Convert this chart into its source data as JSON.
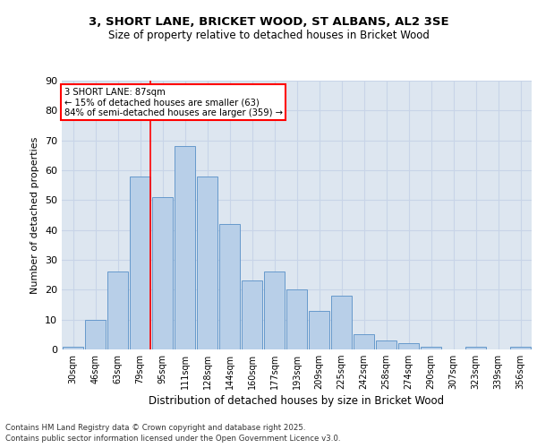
{
  "title1": "3, SHORT LANE, BRICKET WOOD, ST ALBANS, AL2 3SE",
  "title2": "Size of property relative to detached houses in Bricket Wood",
  "xlabel": "Distribution of detached houses by size in Bricket Wood",
  "ylabel": "Number of detached properties",
  "categories": [
    "30sqm",
    "46sqm",
    "63sqm",
    "79sqm",
    "95sqm",
    "111sqm",
    "128sqm",
    "144sqm",
    "160sqm",
    "177sqm",
    "193sqm",
    "209sqm",
    "225sqm",
    "242sqm",
    "258sqm",
    "274sqm",
    "290sqm",
    "307sqm",
    "323sqm",
    "339sqm",
    "356sqm"
  ],
  "values": [
    1,
    10,
    26,
    58,
    51,
    68,
    58,
    42,
    23,
    26,
    20,
    13,
    18,
    5,
    3,
    2,
    1,
    0,
    1,
    0,
    1
  ],
  "bar_color": "#b8cfe8",
  "bar_edge_color": "#6699cc",
  "grid_color": "#c8d4e8",
  "bg_color": "#dde6f0",
  "red_line_bar_index": 3,
  "annotation_text_line1": "3 SHORT LANE: 87sqm",
  "annotation_text_line2": "← 15% of detached houses are smaller (63)",
  "annotation_text_line3": "84% of semi-detached houses are larger (359) →",
  "ylim": [
    0,
    90
  ],
  "yticks": [
    0,
    10,
    20,
    30,
    40,
    50,
    60,
    70,
    80,
    90
  ],
  "footer1": "Contains HM Land Registry data © Crown copyright and database right 2025.",
  "footer2": "Contains public sector information licensed under the Open Government Licence v3.0."
}
